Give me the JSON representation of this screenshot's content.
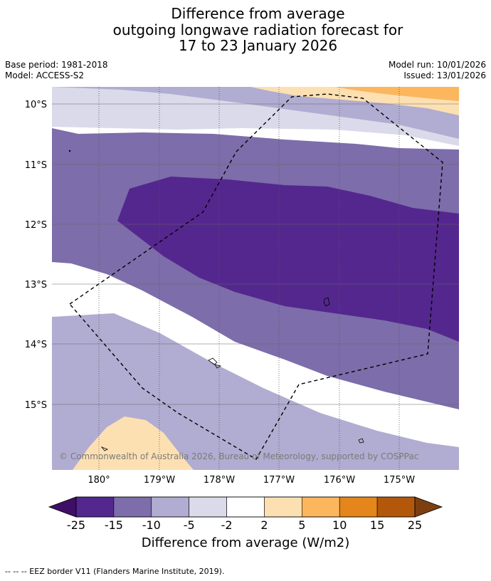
{
  "title": {
    "line1": "Difference from average",
    "line2": "outgoing longwave radiation forecast for",
    "line3": "17 to 23 January 2026"
  },
  "meta": {
    "base_period": "Base period: 1981-2018",
    "model": "Model: ACCESS-S2",
    "model_run": "Model run: 10/01/2026",
    "issued": "Issued: 13/01/2026"
  },
  "map": {
    "lat_labels": [
      "10°S",
      "11°S",
      "12°S",
      "13°S",
      "14°S",
      "15°S"
    ],
    "lon_labels": [
      "180°",
      "179°W",
      "178°W",
      "177°W",
      "176°W",
      "175°W"
    ],
    "copyright": "© Commonwealth of Australia 2026, Bureau of Meteorology, supported by COSPPac",
    "boundary": "EEZ border (dashed)"
  },
  "colorbar": {
    "ticks": [
      "-25",
      "-15",
      "-10",
      "-5",
      "-2",
      "2",
      "5",
      "10",
      "15",
      "25"
    ],
    "colors": [
      "#3f0f67",
      "#54278f",
      "#7d6daa",
      "#b1acd1",
      "#dadaea",
      "#ffffff",
      "#fde0b2",
      "#fbb65e",
      "#e4861b",
      "#b3580b",
      "#7e3f10"
    ],
    "label": "Difference from average (W/m2)"
  },
  "footnote": "--  --  -- EEZ border V11 (Flanders Marine Institute, 2019)."
}
